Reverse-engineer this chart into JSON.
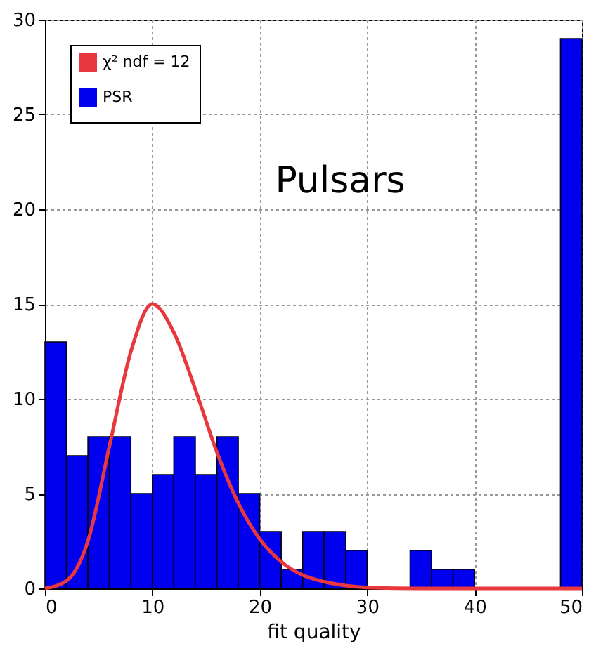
{
  "chart_data": {
    "type": "histogram",
    "xlabel": "fit quality",
    "annotations": [
      "Pulsars"
    ],
    "bins": [
      0,
      2,
      4,
      6,
      8,
      10,
      12,
      14,
      16,
      18,
      20,
      22,
      24,
      26,
      28,
      30,
      32,
      34,
      36,
      38,
      40,
      42,
      44,
      46,
      48,
      50
    ],
    "series": [
      {
        "name": "χ² ndf = 12",
        "type": "line",
        "color": "#e8383d",
        "x": [
          0,
          2,
          4,
          6,
          8,
          10,
          12,
          14,
          16,
          18,
          20,
          22,
          24,
          26,
          28,
          30,
          35,
          40,
          45,
          50
        ],
        "values": [
          0,
          0.4,
          2.5,
          7.5,
          12.5,
          15,
          13.5,
          10.5,
          7.2,
          4.5,
          2.6,
          1.4,
          0.7,
          0.35,
          0.15,
          0.05,
          0,
          0,
          0,
          0
        ]
      },
      {
        "name": "PSR",
        "color": "#0000ee",
        "values": [
          13,
          7,
          8,
          8,
          5,
          6,
          8,
          6,
          8,
          5,
          3,
          1,
          3,
          3,
          2,
          0,
          0,
          2,
          1,
          1,
          0,
          0,
          0,
          0,
          29
        ]
      }
    ],
    "xlim": [
      0,
      50
    ],
    "xticks": [
      0,
      10,
      20,
      30,
      40,
      50
    ],
    "ylim": [
      0,
      30
    ],
    "yticks": [
      0,
      5,
      10,
      15,
      20,
      25,
      30
    ],
    "grid": true,
    "legend": "top left"
  }
}
